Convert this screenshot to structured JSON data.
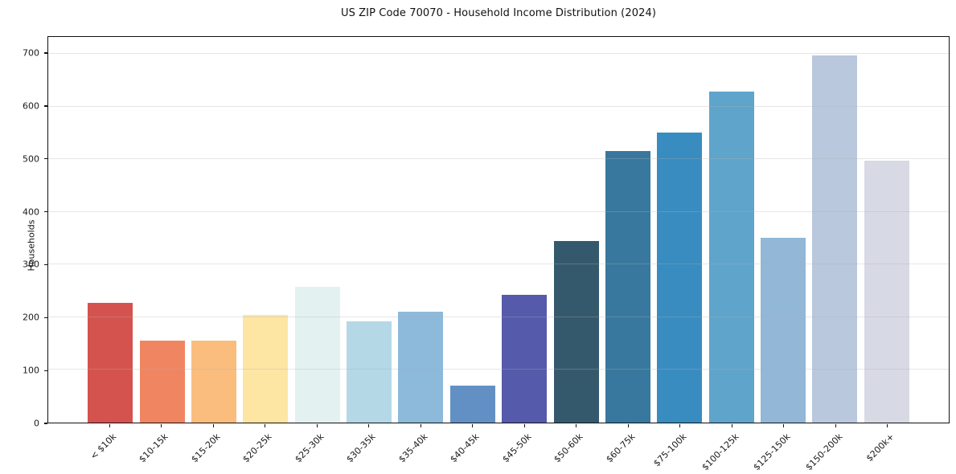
{
  "chart_data": {
    "type": "bar",
    "title": "US ZIP Code 70070 - Household Income Distribution (2024)",
    "xlabel": "",
    "ylabel": "Households",
    "categories": [
      "< $10k",
      "$10-15k",
      "$15-20k",
      "$20-25k",
      "$25-30k",
      "$30-35k",
      "$35-40k",
      "$40-45k",
      "$45-50k",
      "$50-60k",
      "$60-75k",
      "$75-100k",
      "$100-125k",
      "$125-150k",
      "$150-200k",
      "$200k+"
    ],
    "values": [
      227,
      156,
      156,
      205,
      257,
      192,
      210,
      70,
      242,
      344,
      515,
      550,
      628,
      351,
      697,
      497
    ],
    "bar_colors": [
      "#d4534e",
      "#f08562",
      "#fabd7e",
      "#fde5a4",
      "#e3f1f1",
      "#b4d8e6",
      "#8db9da",
      "#6290c4",
      "#555aab",
      "#35596c",
      "#38789e",
      "#388cc0",
      "#5fa4cb",
      "#92b7d7",
      "#b9c8dd",
      "#d7d9e4"
    ],
    "yticks": [
      0,
      100,
      200,
      300,
      400,
      500,
      600,
      700
    ],
    "ylim": [
      0,
      732
    ],
    "grid": "horizontal",
    "grid_on": true,
    "legend": "none",
    "background_color": "#ffffff",
    "axis_color": "#111111",
    "text_color": "#1a1a1a"
  }
}
